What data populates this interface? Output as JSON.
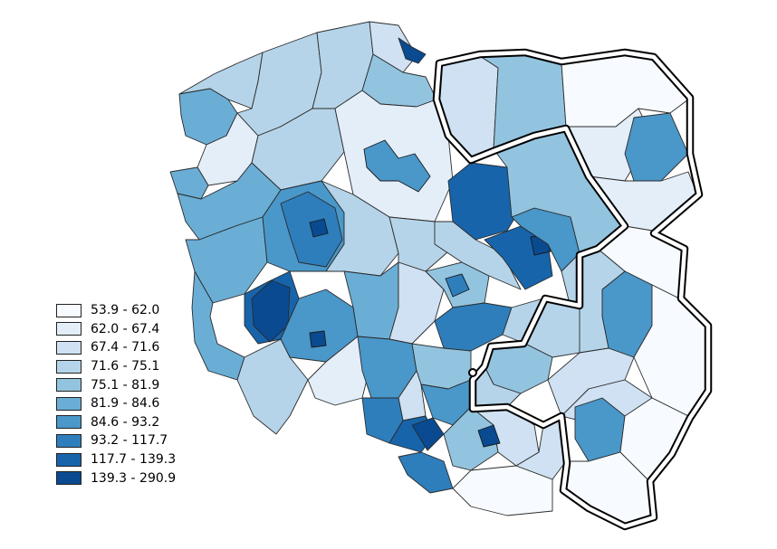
{
  "legend": {
    "classes": [
      {
        "label": "53.9 - 62.0",
        "color": "#f7fbff"
      },
      {
        "label": "62.0 - 67.4",
        "color": "#e3eef9"
      },
      {
        "label": "67.4 - 71.6",
        "color": "#cfe1f2"
      },
      {
        "label": "71.6 - 75.1",
        "color": "#b5d4e9"
      },
      {
        "label": "75.1 - 81.9",
        "color": "#93c4df"
      },
      {
        "label": "81.9 - 84.6",
        "color": "#6aaed6"
      },
      {
        "label": "84.6 - 93.2",
        "color": "#4a97c9"
      },
      {
        "label": "93.2 - 117.7",
        "color": "#2e7ebc"
      },
      {
        "label": "117.7 - 139.3",
        "color": "#1764ab"
      },
      {
        "label": "139.3 - 290.9",
        "color": "#0a4a90"
      }
    ]
  },
  "map": {
    "subject": "Poland subregions (NUTS-3) choropleth",
    "highlighted_area": "eastern macroregion outline"
  }
}
